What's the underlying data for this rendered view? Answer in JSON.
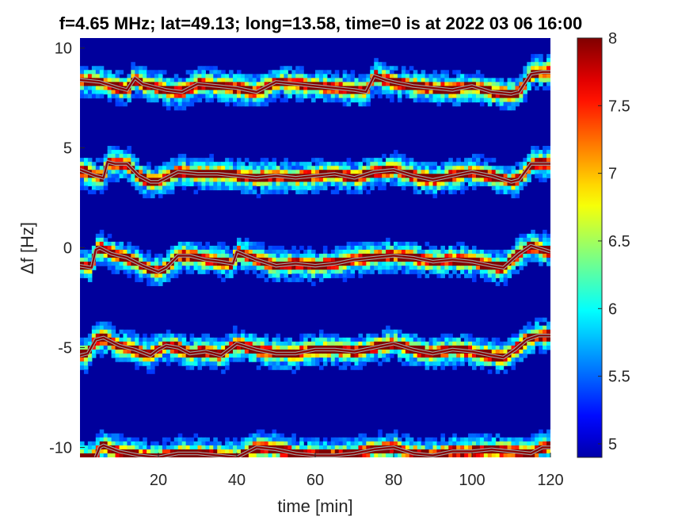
{
  "chart_data": {
    "type": "heatmap",
    "title": "f=4.65 MHz;  lat=49.13; long=13.58, time=0 is at 2022 03 06 16:00",
    "xlabel": "time [min]",
    "ylabel": "Δf [Hz]",
    "xlim": [
      0,
      120
    ],
    "ylim": [
      -10.5,
      10.5
    ],
    "x_ticks": [
      20,
      40,
      60,
      80,
      100,
      120
    ],
    "x_tick_labels": [
      "20",
      "40",
      "60",
      "80",
      "100",
      "120"
    ],
    "y_ticks": [
      10,
      5,
      0,
      -5,
      -10
    ],
    "y_tick_labels": [
      "10",
      "5",
      "0",
      "-5",
      "-10"
    ],
    "colormap": "jet",
    "clim": [
      4.9,
      8
    ],
    "colorbar_ticks": [
      8,
      7.5,
      7,
      6.5,
      6,
      5.5,
      5
    ],
    "colorbar_tick_labels": [
      "8",
      "7.5",
      "7",
      "6.5",
      "6",
      "5.5",
      "5"
    ],
    "background_level": 5,
    "grid": false,
    "trace_color": "#8b0000",
    "overlay_color": "#a0a0a0",
    "traces": [
      {
        "offset": 10,
        "x": [
          0,
          5,
          10,
          12,
          14,
          16,
          18,
          22,
          26,
          30,
          35,
          40,
          45,
          50,
          55,
          60,
          65,
          70,
          73,
          75,
          78,
          80,
          85,
          90,
          95,
          100,
          105,
          110,
          112,
          115,
          118,
          120
        ],
        "y": [
          8.4,
          8.3,
          8.0,
          7.9,
          8.5,
          8.2,
          8.1,
          7.9,
          7.8,
          8.2,
          8.1,
          8.0,
          7.8,
          8.3,
          8.2,
          8.1,
          8.0,
          7.9,
          7.8,
          8.6,
          8.4,
          8.3,
          8.1,
          8.0,
          7.9,
          8.1,
          7.8,
          7.7,
          7.8,
          8.7,
          8.8,
          8.8
        ]
      },
      {
        "offset": 5,
        "x": [
          0,
          4,
          6,
          7,
          9,
          12,
          15,
          18,
          20,
          25,
          30,
          35,
          40,
          45,
          50,
          55,
          60,
          65,
          70,
          75,
          80,
          85,
          90,
          95,
          100,
          105,
          110,
          112,
          115,
          120
        ],
        "y": [
          3.9,
          3.6,
          3.5,
          4.3,
          4.2,
          4.2,
          3.6,
          3.3,
          3.3,
          3.8,
          3.7,
          3.7,
          3.6,
          3.5,
          3.6,
          3.5,
          3.6,
          3.7,
          3.5,
          3.8,
          3.9,
          3.6,
          3.4,
          3.6,
          3.8,
          3.6,
          3.3,
          3.4,
          4.2,
          4.2
        ]
      },
      {
        "offset": 0,
        "x": [
          0,
          3,
          4,
          5,
          8,
          12,
          16,
          20,
          22,
          25,
          28,
          32,
          36,
          39,
          40,
          45,
          50,
          55,
          60,
          65,
          70,
          75,
          80,
          85,
          90,
          95,
          100,
          105,
          108,
          112,
          115,
          120
        ],
        "y": [
          -0.9,
          -1.0,
          -0.1,
          0.0,
          -0.3,
          -0.5,
          -0.9,
          -1.2,
          -1.0,
          -0.4,
          -0.4,
          -0.6,
          -0.7,
          -0.8,
          -0.2,
          -0.6,
          -0.9,
          -0.8,
          -0.9,
          -0.8,
          -0.6,
          -0.5,
          -0.4,
          -0.5,
          -0.7,
          -0.6,
          -0.7,
          -0.9,
          -1.0,
          -0.3,
          0.1,
          -0.2
        ]
      },
      {
        "offset": -5,
        "x": [
          0,
          2,
          4,
          6,
          8,
          10,
          14,
          18,
          20,
          22,
          25,
          28,
          32,
          36,
          40,
          45,
          50,
          55,
          60,
          65,
          70,
          75,
          80,
          85,
          90,
          95,
          100,
          105,
          108,
          111,
          114,
          117,
          120
        ],
        "y": [
          -5.4,
          -5.3,
          -4.6,
          -4.5,
          -4.7,
          -4.9,
          -5.1,
          -5.4,
          -5.1,
          -4.9,
          -5.0,
          -5.3,
          -5.2,
          -5.4,
          -4.8,
          -5.1,
          -5.3,
          -5.3,
          -5.1,
          -5.1,
          -5.2,
          -5.0,
          -4.8,
          -5.1,
          -5.3,
          -5.1,
          -5.2,
          -5.4,
          -5.5,
          -5.1,
          -4.6,
          -4.4,
          -4.4
        ]
      },
      {
        "offset": -10,
        "x": [
          4,
          5,
          6,
          10,
          15,
          20,
          25,
          30,
          35,
          40,
          45,
          50,
          55,
          60,
          65,
          70,
          75,
          80,
          85,
          90,
          95,
          100,
          105,
          110,
          115,
          118,
          120
        ],
        "y": [
          -10.5,
          -10.0,
          -9.9,
          -10.2,
          -10.4,
          -10.5,
          -10.3,
          -10.3,
          -10.4,
          -10.5,
          -10.0,
          -10.1,
          -10.3,
          -10.4,
          -10.4,
          -10.3,
          -10.1,
          -10.0,
          -10.3,
          -10.4,
          -10.2,
          -10.2,
          -10.1,
          -10.2,
          -10.3,
          -10.0,
          -10.0
        ]
      }
    ]
  }
}
